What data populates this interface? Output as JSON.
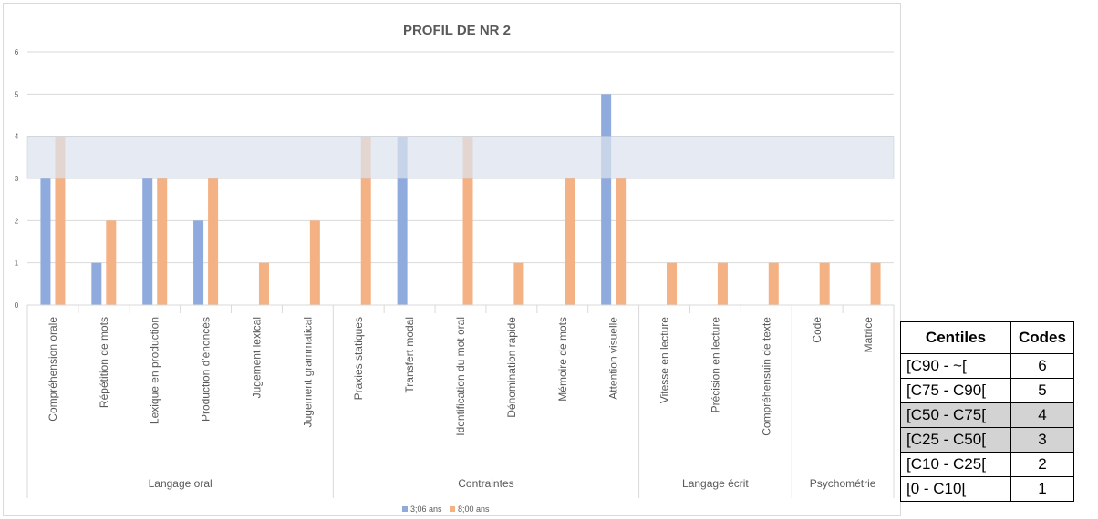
{
  "chart_data": {
    "type": "bar",
    "title": "PROFIL DE NR 2",
    "categories": [
      "Compréhension orale",
      "Répétition de mots",
      "Lexique en production",
      "Production d'énoncés",
      "Jugement lexical",
      "Jugement grammatical",
      "Praxies statiques",
      "Transfert modal",
      "Identification du mot oral",
      "Dénomination rapide",
      "Mémoire de mots",
      "Attention visuelle",
      "Vitesse en lecture",
      "Précision en lecture",
      "Compréhensuin de texte",
      "Code",
      "Matrice"
    ],
    "groups": [
      {
        "label": "Langage oral",
        "count": 6
      },
      {
        "label": "Contraintes",
        "count": 6
      },
      {
        "label": "Langage écrit",
        "count": 3
      },
      {
        "label": "Psychométrie",
        "count": 2
      }
    ],
    "series": [
      {
        "name": "3;06 ans",
        "color": "#8faadc",
        "values": [
          3,
          1,
          3,
          2,
          0,
          0,
          0,
          4,
          0,
          0,
          0,
          5,
          0,
          0,
          0,
          0,
          0
        ]
      },
      {
        "name": "8;00 ans",
        "color": "#f4b183",
        "values": [
          4,
          2,
          3,
          3,
          1,
          2,
          4,
          0,
          4,
          1,
          3,
          3,
          1,
          1,
          1,
          1,
          1
        ]
      }
    ],
    "ylim": [
      0,
      6
    ],
    "yticks": [
      0,
      1,
      2,
      3,
      4,
      5,
      6
    ],
    "band": {
      "from": 3,
      "to": 4,
      "color": "#dce3ee"
    },
    "grid": true,
    "legend_position": "bottom"
  },
  "table": {
    "headers": [
      "Centiles",
      "Codes"
    ],
    "rows": [
      {
        "centile": "[C90 - ~[",
        "code": "6",
        "highlight": false
      },
      {
        "centile": "[C75 - C90[",
        "code": "5",
        "highlight": false
      },
      {
        "centile": "[C50 - C75[",
        "code": "4",
        "highlight": true
      },
      {
        "centile": "[C25 - C50[",
        "code": "3",
        "highlight": true
      },
      {
        "centile": "[C10 - C25[",
        "code": "2",
        "highlight": false
      },
      {
        "centile": "[0 - C10[",
        "code": "1",
        "highlight": false
      }
    ]
  }
}
